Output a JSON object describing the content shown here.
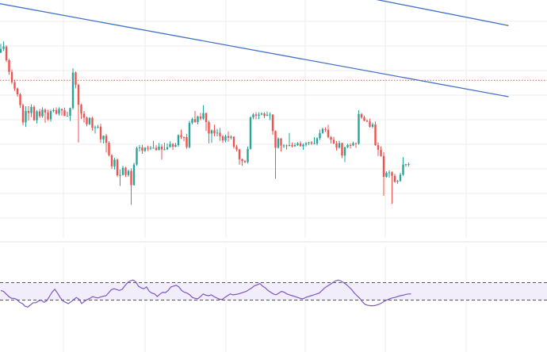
{
  "colors": {
    "up": "#26a69a",
    "down": "#ef5350",
    "wick": "#888888",
    "channel": "#4472c4",
    "rsi_line": "#7e57c2",
    "rsi_band_fill": "#f2edfb",
    "rsi_band_line": "#555555",
    "grid": "#eeeeee",
    "price_line": "#e05a50"
  },
  "chart_data": [
    {
      "type": "candlestick",
      "title": "",
      "xlabel": "",
      "ylabel": "",
      "grid": true,
      "ylim": [
        0,
        100
      ],
      "current_price": 69,
      "channel_lines": [
        {
          "name": "",
          "x": [
            0,
            183
          ],
          "y": [
            111,
            60
          ]
        },
        {
          "name": "",
          "x": [
            0,
            183
          ],
          "y": [
            154,
            99
          ]
        }
      ],
      "ohlc": [
        [
          84.2,
          86.2,
          89.0,
          83.9
        ],
        [
          86.2,
          87.5,
          90.3,
          85.1
        ],
        [
          87.5,
          80.0,
          88.2,
          79.0
        ],
        [
          80.0,
          73.6,
          80.8,
          72.0
        ],
        [
          73.6,
          67.9,
          74.9,
          66.9
        ],
        [
          67.9,
          64.5,
          69.3,
          63.2
        ],
        [
          64.5,
          61.3,
          65.0,
          60.0
        ],
        [
          61.3,
          55.4,
          62.0,
          53.8
        ],
        [
          55.4,
          45.9,
          56.2,
          44.3
        ],
        [
          45.9,
          52.2,
          54.8,
          43.4
        ],
        [
          52.2,
          51.1,
          54.8,
          46.9
        ],
        [
          51.1,
          54.4,
          55.8,
          48.8
        ],
        [
          54.4,
          47.1,
          55.3,
          46.8
        ],
        [
          47.1,
          52.0,
          52.7,
          45.3
        ],
        [
          52.0,
          49.3,
          53.3,
          48.4
        ],
        [
          49.3,
          52.9,
          54.2,
          48.5
        ],
        [
          52.9,
          51.3,
          53.6,
          45.7
        ],
        [
          51.3,
          47.6,
          52.8,
          46.8
        ],
        [
          47.6,
          52.1,
          53.0,
          46.3
        ],
        [
          52.1,
          52.7,
          53.7,
          51.4
        ],
        [
          52.7,
          50.7,
          54.2,
          50.1
        ],
        [
          50.7,
          53.2,
          54.2,
          49.7
        ],
        [
          53.2,
          52.5,
          53.6,
          49.6
        ],
        [
          52.5,
          49.5,
          54.0,
          49.3
        ],
        [
          49.5,
          49.5,
          51.8,
          49.2
        ],
        [
          49.5,
          53.8,
          54.0,
          46.7
        ],
        [
          53.8,
          73.3,
          75.6,
          52.9
        ],
        [
          73.3,
          66.5,
          73.8,
          64.6
        ],
        [
          66.5,
          55.6,
          67.2,
          34.9
        ],
        [
          55.6,
          50.7,
          56.2,
          47.8
        ],
        [
          50.7,
          48.5,
          52.2,
          45.8
        ],
        [
          48.5,
          44.9,
          49.2,
          43.7
        ],
        [
          44.9,
          48.4,
          48.8,
          44.4
        ],
        [
          48.4,
          43.0,
          49.0,
          41.4
        ],
        [
          43.0,
          43.3,
          44.3,
          39.8
        ],
        [
          43.3,
          43.6,
          44.6,
          42.6
        ],
        [
          43.6,
          36.6,
          45.1,
          34.6
        ],
        [
          36.6,
          38.6,
          38.8,
          34.4
        ],
        [
          38.6,
          34.7,
          39.6,
          29.4
        ],
        [
          34.7,
          27.9,
          35.6,
          27.3
        ],
        [
          27.9,
          21.8,
          28.4,
          20.3
        ],
        [
          21.8,
          25.5,
          26.5,
          20.1
        ],
        [
          25.5,
          16.9,
          26.1,
          15.9
        ],
        [
          16.9,
          17.1,
          20.1,
          11.1
        ],
        [
          17.1,
          21.1,
          22.1,
          16.8
        ],
        [
          21.1,
          17.1,
          21.6,
          16.0
        ],
        [
          17.1,
          19.3,
          20.0,
          16.1
        ],
        [
          19.3,
          11.5,
          20.7,
          0.7
        ],
        [
          11.5,
          22.8,
          23.8,
          11.3
        ],
        [
          22.8,
          31.8,
          32.6,
          22.2
        ],
        [
          31.8,
          32.2,
          33.5,
          30.0
        ],
        [
          32.2,
          30.3,
          33.6,
          28.7
        ],
        [
          30.3,
          32.0,
          32.4,
          29.7
        ],
        [
          32.0,
          31.5,
          33.2,
          30.2
        ],
        [
          31.5,
          32.0,
          33.0,
          30.7
        ],
        [
          32.0,
          32.0,
          35.8,
          31.5
        ],
        [
          32.0,
          30.7,
          33.4,
          30.5
        ],
        [
          30.7,
          32.6,
          34.6,
          31.0
        ],
        [
          32.6,
          31.1,
          34.0,
          25.5
        ],
        [
          31.1,
          31.2,
          34.8,
          30.6
        ],
        [
          31.2,
          32.3,
          34.4,
          30.7
        ],
        [
          32.3,
          34.1,
          35.6,
          32.6
        ],
        [
          34.1,
          32.6,
          34.6,
          30.8
        ],
        [
          32.6,
          33.5,
          34.6,
          32.3
        ],
        [
          33.5,
          38.9,
          39.4,
          32.5
        ],
        [
          38.9,
          37.9,
          42.0,
          36.8
        ],
        [
          37.9,
          37.8,
          38.1,
          35.6
        ],
        [
          37.8,
          32.3,
          39.6,
          31.5
        ],
        [
          32.3,
          45.7,
          46.8,
          31.7
        ],
        [
          45.7,
          47.7,
          48.5,
          44.9
        ],
        [
          47.7,
          46.0,
          52.3,
          45.8
        ],
        [
          46.0,
          49.2,
          49.5,
          44.8
        ],
        [
          49.2,
          48.0,
          51.2,
          47.0
        ],
        [
          48.0,
          51.0,
          55.4,
          47.3
        ],
        [
          51.0,
          46.1,
          51.3,
          41.2
        ],
        [
          46.1,
          39.8,
          46.9,
          34.4
        ],
        [
          39.8,
          41.6,
          42.0,
          34.7
        ],
        [
          41.6,
          39.9,
          44.7,
          38.3
        ],
        [
          39.9,
          40.3,
          42.4,
          38.2
        ],
        [
          40.3,
          38.3,
          42.8,
          35.8
        ],
        [
          38.3,
          36.0,
          39.0,
          34.7
        ],
        [
          36.0,
          38.4,
          39.2,
          35.0
        ],
        [
          38.4,
          37.5,
          41.0,
          35.3
        ],
        [
          37.5,
          38.1,
          38.8,
          36.6
        ],
        [
          38.1,
          32.5,
          38.3,
          31.6
        ],
        [
          32.5,
          31.1,
          33.6,
          30.0
        ],
        [
          31.1,
          25.7,
          31.5,
          22.7
        ],
        [
          25.7,
          24.7,
          26.2,
          22.1
        ],
        [
          24.7,
          24.1,
          25.4,
          23.5
        ],
        [
          24.1,
          31.4,
          32.7,
          23.4
        ],
        [
          31.4,
          48.7,
          49.3,
          31.0
        ],
        [
          48.7,
          50.3,
          51.0,
          47.7
        ],
        [
          50.3,
          49.6,
          51.5,
          47.6
        ],
        [
          49.6,
          50.2,
          51.5,
          47.7
        ],
        [
          50.2,
          50.8,
          51.4,
          49.8
        ],
        [
          50.8,
          49.5,
          51.4,
          48.2
        ],
        [
          49.5,
          50.1,
          51.9,
          49.5
        ],
        [
          50.1,
          50.2,
          51.4,
          47.2
        ],
        [
          50.2,
          41.2,
          50.4,
          39.1
        ],
        [
          41.2,
          32.0,
          41.5,
          15.0
        ],
        [
          32.0,
          37.1,
          37.7,
          31.6
        ],
        [
          37.1,
          33.2,
          37.3,
          30.0
        ],
        [
          33.2,
          33.3,
          34.0,
          31.9
        ],
        [
          33.3,
          33.2,
          33.8,
          31.0
        ],
        [
          33.2,
          33.5,
          40.1,
          32.7
        ],
        [
          33.5,
          32.8,
          34.9,
          32.2
        ],
        [
          32.8,
          33.5,
          34.6,
          32.5
        ],
        [
          33.5,
          34.5,
          35.1,
          33.0
        ],
        [
          34.5,
          32.8,
          35.6,
          32.7
        ],
        [
          32.8,
          33.7,
          34.4,
          30.9
        ],
        [
          33.7,
          34.5,
          35.1,
          32.7
        ],
        [
          34.5,
          35.0,
          35.2,
          33.5
        ],
        [
          35.0,
          34.3,
          35.6,
          33.6
        ],
        [
          34.3,
          34.3,
          37.8,
          33.9
        ],
        [
          34.3,
          37.2,
          37.7,
          33.3
        ],
        [
          37.2,
          40.1,
          42.0,
          36.2
        ],
        [
          40.1,
          42.3,
          43.1,
          39.7
        ],
        [
          42.3,
          41.9,
          43.2,
          40.7
        ],
        [
          41.9,
          37.8,
          44.6,
          37.2
        ],
        [
          37.8,
          36.4,
          38.4,
          34.3
        ],
        [
          36.4,
          34.4,
          38.0,
          33.9
        ],
        [
          34.4,
          32.1,
          35.7,
          30.5
        ],
        [
          32.1,
          34.6,
          35.9,
          31.5
        ],
        [
          34.6,
          27.7,
          34.8,
          26.3
        ],
        [
          27.7,
          32.3,
          32.6,
          24.1
        ],
        [
          32.3,
          33.5,
          34.2,
          31.8
        ],
        [
          33.5,
          33.3,
          34.5,
          31.6
        ],
        [
          33.3,
          34.6,
          35.3,
          32.9
        ],
        [
          34.6,
          34.2,
          34.8,
          32.0
        ],
        [
          34.2,
          50.5,
          52.6,
          33.7
        ],
        [
          50.5,
          48.6,
          51.1,
          47.8
        ],
        [
          48.6,
          46.8,
          49.7,
          46.5
        ],
        [
          46.8,
          46.4,
          47.6,
          46.1
        ],
        [
          46.4,
          43.5,
          48.0,
          43.1
        ],
        [
          43.5,
          44.8,
          45.8,
          42.7
        ],
        [
          44.8,
          33.4,
          46.4,
          33.1
        ],
        [
          33.4,
          30.9,
          34.9,
          27.5
        ],
        [
          30.9,
          27.5,
          32.7,
          27.1
        ],
        [
          27.5,
          16.1,
          29.6,
          5.7
        ],
        [
          16.1,
          18.2,
          19.1,
          15.6
        ],
        [
          18.2,
          18.5,
          19.7,
          15.6
        ],
        [
          18.5,
          16.6,
          19.1,
          1.2
        ],
        [
          16.6,
          13.3,
          17.7,
          12.8
        ],
        [
          13.3,
          13.8,
          14.4,
          12.3
        ],
        [
          13.8,
          17.2,
          18.3,
          13.3
        ],
        [
          17.2,
          22.8,
          26.9,
          16.6
        ],
        [
          22.8,
          23.0,
          23.2,
          21.6
        ],
        [
          23.0,
          22.9,
          23.9,
          21.7
        ]
      ]
    },
    {
      "type": "line",
      "title": "",
      "xlabel": "",
      "ylabel": "",
      "grid": true,
      "ylim": [
        0,
        100
      ],
      "bands": [
        30,
        70
      ],
      "series": [
        {
          "name": "",
          "values": [
            52,
            50,
            44,
            38,
            34,
            34,
            31,
            25,
            22,
            16,
            14,
            19,
            24,
            24,
            28,
            30,
            25,
            28,
            38,
            48,
            55,
            46,
            36,
            28,
            25,
            22,
            26,
            31,
            36,
            32,
            22,
            27,
            31,
            34,
            38,
            36,
            35,
            37,
            39,
            40,
            47,
            54,
            56,
            54,
            52,
            55,
            63,
            70,
            74,
            76,
            72,
            62,
            58,
            56,
            60,
            50,
            46,
            44,
            38,
            44,
            48,
            47,
            52,
            60,
            62,
            64,
            60,
            52,
            48,
            46,
            42,
            36,
            34,
            33,
            38,
            44,
            41,
            40,
            42,
            38,
            35,
            32,
            31,
            36,
            40,
            44,
            42,
            43,
            44,
            46,
            48,
            50,
            54,
            58,
            63,
            65,
            68,
            62,
            58,
            52,
            48,
            44,
            42,
            46,
            50,
            48,
            44,
            42,
            40,
            38,
            36,
            34,
            33,
            36,
            38,
            40,
            42,
            44,
            46,
            52,
            58,
            62,
            66,
            70,
            74,
            76,
            74,
            70,
            66,
            60,
            54,
            46,
            40,
            34,
            26,
            20,
            18,
            17,
            17,
            18,
            20,
            23,
            27,
            30,
            33,
            35,
            36,
            38,
            40,
            41,
            43,
            44,
            44
          ]
        }
      ]
    }
  ]
}
